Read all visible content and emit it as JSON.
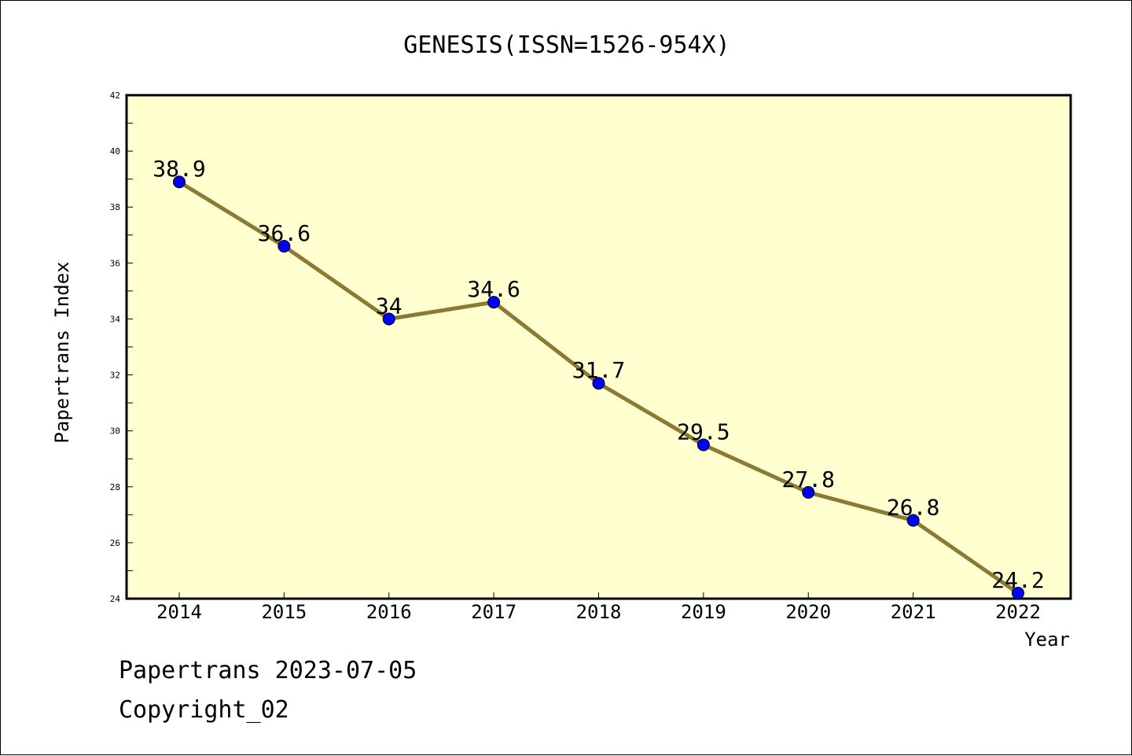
{
  "chart_data": {
    "type": "line",
    "title": "GENESIS(ISSN=1526-954X)",
    "xlabel": "Year",
    "ylabel": "Papertrans Index",
    "categories": [
      "2014",
      "2015",
      "2016",
      "2017",
      "2018",
      "2019",
      "2020",
      "2021",
      "2022"
    ],
    "series": [
      {
        "values": [
          38.9,
          36.6,
          34.0,
          34.6,
          31.7,
          29.5,
          27.8,
          26.8,
          24.2
        ],
        "point_labels": [
          "38.9",
          "36.6",
          "34",
          "34.6",
          "31.7",
          "29.5",
          "27.8",
          "26.8",
          "24.2"
        ]
      }
    ],
    "ylim": [
      24,
      42
    ],
    "yticks": [
      24,
      26,
      28,
      30,
      32,
      34,
      36,
      38,
      40,
      42
    ],
    "grid": false,
    "colors": {
      "plot_background": "#ffffd0",
      "line": "#8b7a35",
      "marker": "#0000ff"
    }
  },
  "footer": {
    "line1": "Papertrans 2023-07-05",
    "line2": "Copyright_02"
  }
}
